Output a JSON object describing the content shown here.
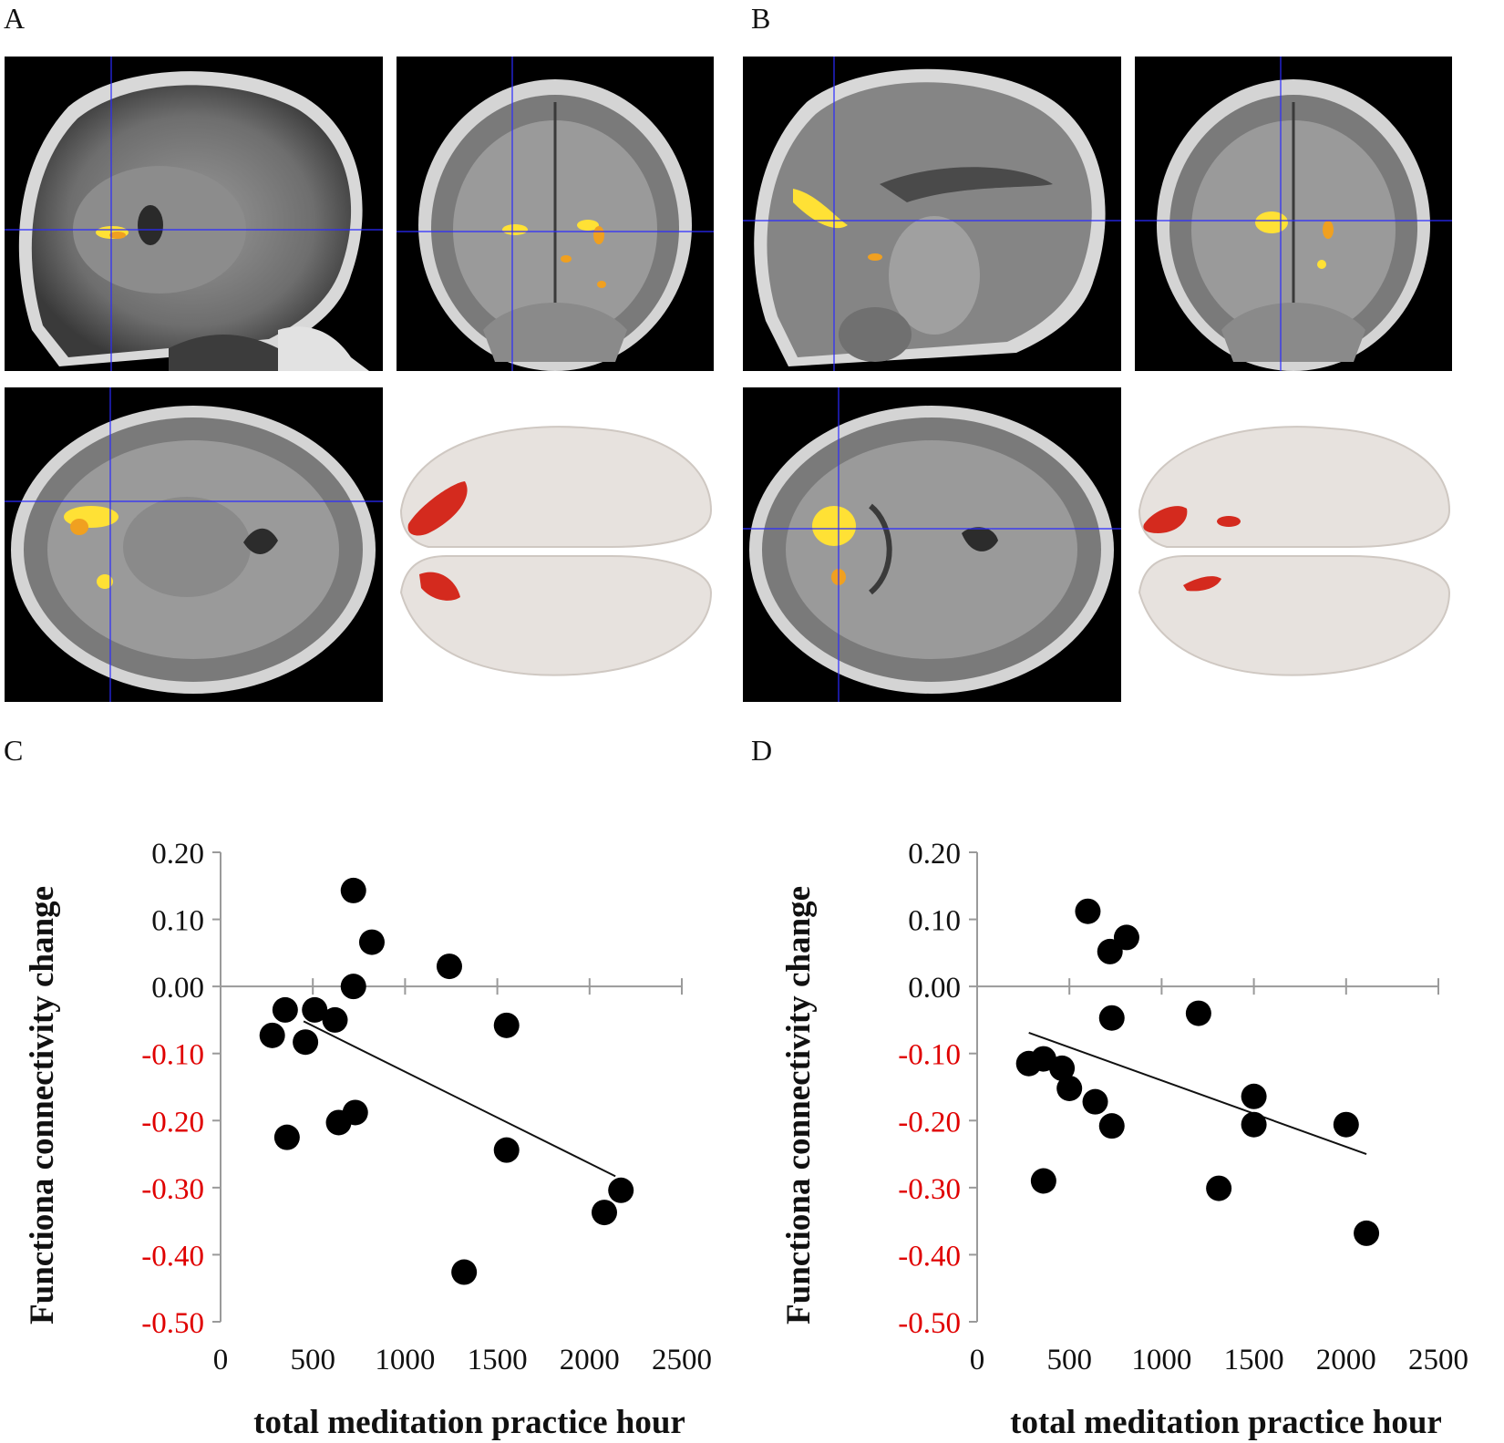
{
  "panels": {
    "a": "A",
    "b": "B",
    "c": "C",
    "d": "D"
  },
  "colors": {
    "activation_yellow": "#ffe135",
    "activation_orange": "#f0a020",
    "render_red": "#d42a1e",
    "crosshair": "#2a2aff",
    "negative_tick": "#e00000",
    "points": "#000000"
  },
  "chart_data": [
    {
      "panel": "C",
      "type": "scatter",
      "title": "",
      "xlabel": "total meditation practice hour",
      "ylabel": "Functiona connectivity change",
      "xlim": [
        0,
        2500
      ],
      "ylim": [
        -0.5,
        0.2
      ],
      "xticks": [
        "0",
        "500",
        "1000",
        "1500",
        "2000",
        "2500"
      ],
      "yticks": [
        "0.20",
        "0.10",
        "0.00",
        "-0.10",
        "-0.20",
        "-0.30",
        "-0.40",
        "-0.50"
      ],
      "negative_tick_color": "#e00000",
      "grid": false,
      "points": [
        {
          "x": 280,
          "y": -0.073
        },
        {
          "x": 350,
          "y": -0.035
        },
        {
          "x": 360,
          "y": -0.225
        },
        {
          "x": 460,
          "y": -0.083
        },
        {
          "x": 510,
          "y": -0.035
        },
        {
          "x": 620,
          "y": -0.05
        },
        {
          "x": 640,
          "y": -0.203
        },
        {
          "x": 720,
          "y": 0.143
        },
        {
          "x": 720,
          "y": 0.0
        },
        {
          "x": 730,
          "y": -0.188
        },
        {
          "x": 820,
          "y": 0.066
        },
        {
          "x": 1240,
          "y": 0.03
        },
        {
          "x": 1320,
          "y": -0.426
        },
        {
          "x": 1550,
          "y": -0.058
        },
        {
          "x": 1550,
          "y": -0.244
        },
        {
          "x": 2080,
          "y": -0.337
        },
        {
          "x": 2170,
          "y": -0.304
        }
      ],
      "trendline": [
        {
          "x": 450,
          "y": -0.052
        },
        {
          "x": 2140,
          "y": -0.283
        }
      ]
    },
    {
      "panel": "D",
      "type": "scatter",
      "title": "",
      "xlabel": "total meditation practice hour",
      "ylabel": "Functiona connectivity change",
      "xlim": [
        0,
        2500
      ],
      "ylim": [
        -0.5,
        0.2
      ],
      "xticks": [
        "0",
        "500",
        "1000",
        "1500",
        "2000",
        "2500"
      ],
      "yticks": [
        "0.20",
        "0.10",
        "0.00",
        "-0.10",
        "-0.20",
        "-0.30",
        "-0.40",
        "-0.50"
      ],
      "negative_tick_color": "#e00000",
      "grid": false,
      "points": [
        {
          "x": 280,
          "y": -0.115
        },
        {
          "x": 360,
          "y": -0.108
        },
        {
          "x": 360,
          "y": -0.29
        },
        {
          "x": 460,
          "y": -0.122
        },
        {
          "x": 500,
          "y": -0.152
        },
        {
          "x": 600,
          "y": 0.112
        },
        {
          "x": 640,
          "y": -0.172
        },
        {
          "x": 720,
          "y": 0.052
        },
        {
          "x": 730,
          "y": -0.047
        },
        {
          "x": 730,
          "y": -0.208
        },
        {
          "x": 810,
          "y": 0.073
        },
        {
          "x": 1200,
          "y": -0.04
        },
        {
          "x": 1310,
          "y": -0.301
        },
        {
          "x": 1500,
          "y": -0.164
        },
        {
          "x": 1500,
          "y": -0.206
        },
        {
          "x": 2000,
          "y": -0.206
        },
        {
          "x": 2110,
          "y": -0.368
        }
      ],
      "trendline": [
        {
          "x": 280,
          "y": -0.069
        },
        {
          "x": 2110,
          "y": -0.25
        }
      ]
    }
  ]
}
